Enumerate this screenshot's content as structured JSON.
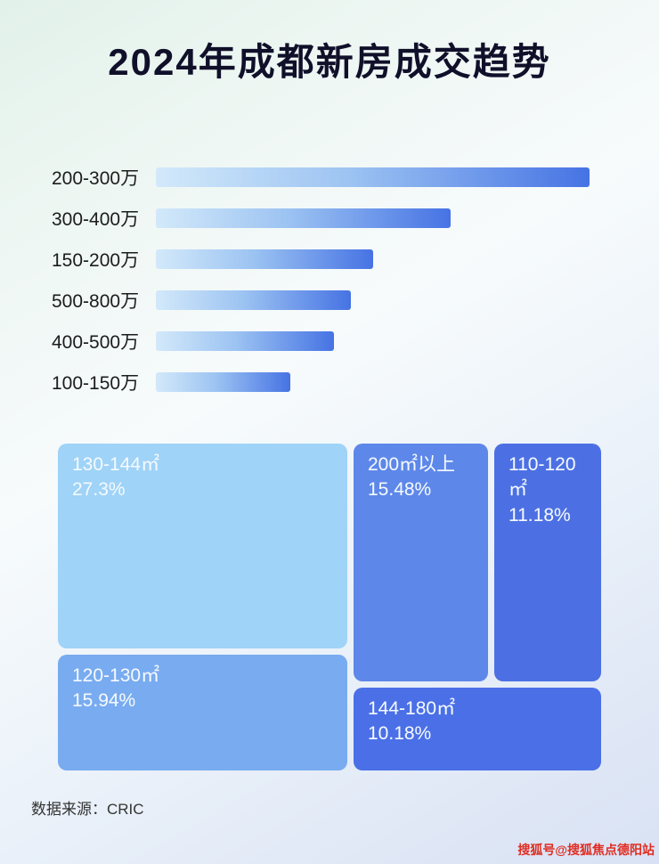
{
  "page": {
    "title": "2024年成都新房成交趋势",
    "source_label": "数据来源：CRIC",
    "watermark": "搜狐号@搜狐焦点德阳站"
  },
  "colors": {
    "title_text": "#10102a",
    "bar_gradient_start": "#d3e9fa",
    "bar_gradient_end": "#4673e4",
    "source_text": "#333333",
    "watermark_red": "#e02d22"
  },
  "chart_data": [
    {
      "type": "bar",
      "orientation": "horizontal",
      "title": "2024年成都新房成交趋势",
      "categories": [
        "200-300万",
        "300-400万",
        "150-200万",
        "500-800万",
        "400-500万",
        "100-150万"
      ],
      "values": [
        100,
        68,
        50,
        45,
        41,
        31
      ],
      "value_scale": "relative bar length, longest bar = 100 (no numeric axis shown)",
      "grid": false,
      "legend": false
    },
    {
      "type": "treemap",
      "items": [
        {
          "label": "130-144㎡",
          "value": 27.3,
          "value_label": "27.3%",
          "color": "#9fd3f7"
        },
        {
          "label": "200㎡以上",
          "value": 15.48,
          "value_label": "15.48%",
          "color": "#5d87e9"
        },
        {
          "label": "110-120㎡",
          "value": 11.18,
          "value_label": "11.18%",
          "color": "#4c70e3"
        },
        {
          "label": "120-130㎡",
          "value": 15.94,
          "value_label": "15.94%",
          "color": "#78abf0"
        },
        {
          "label": "144-180㎡",
          "value": 10.18,
          "value_label": "10.18%",
          "color": "#4a6fe6"
        }
      ]
    }
  ]
}
